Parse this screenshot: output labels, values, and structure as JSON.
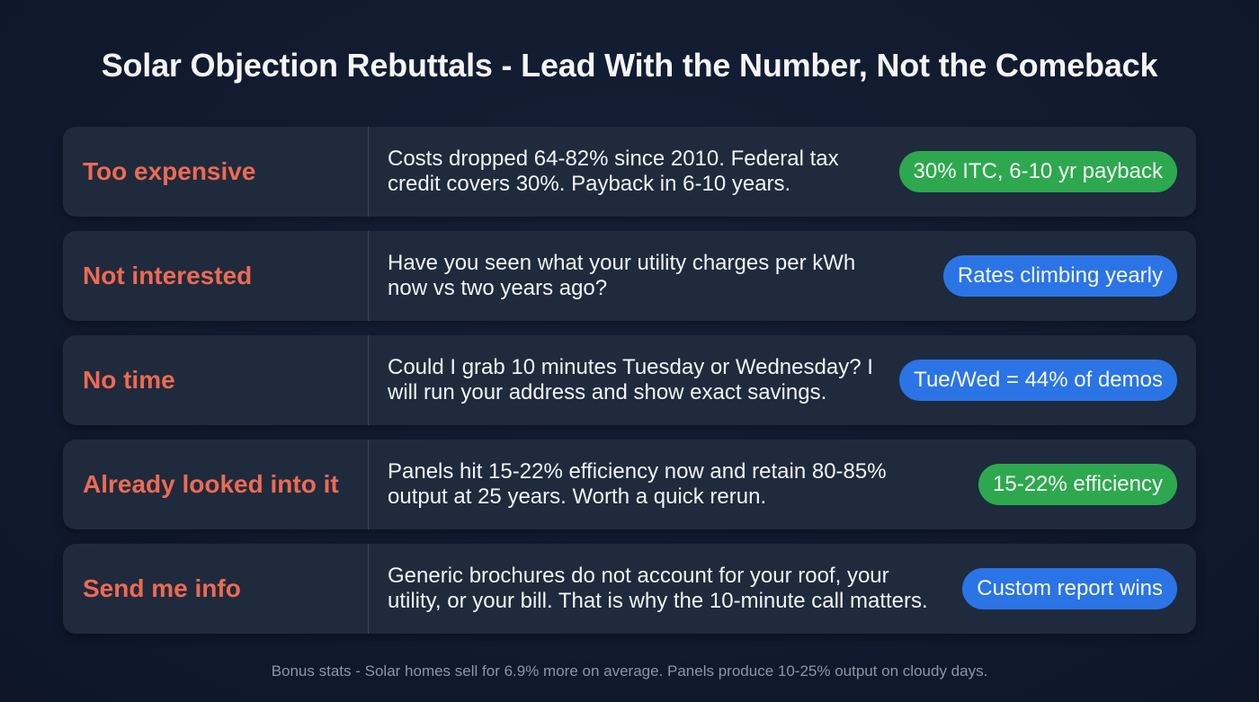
{
  "title": "Solar Objection Rebuttals - Lead With the Number, Not the Comeback",
  "colors": {
    "background": "#111a2e",
    "card": "#1f2a3d",
    "objection_text": "#ee6a52",
    "pill_green": "#2ea84f",
    "pill_blue": "#2b74e6",
    "footer_text": "#8c95a6"
  },
  "rows": [
    {
      "objection": "Too expensive",
      "rebuttal": "Costs dropped 64-82% since 2010. Federal tax\ncredit covers 30%. Payback in 6-10 years.",
      "stat": "30% ITC, 6-10 yr payback",
      "stat_color": "green"
    },
    {
      "objection": "Not interested",
      "rebuttal": "Have you seen what your utility charges per kWh\nnow vs two years ago?",
      "stat": "Rates climbing yearly",
      "stat_color": "blue"
    },
    {
      "objection": "No time",
      "rebuttal": "Could I grab 10 minutes Tuesday or Wednesday? I\n will run your address and show exact savings.",
      "stat": "Tue/Wed = 44% of demos",
      "stat_color": "blue"
    },
    {
      "objection": "Already looked into it",
      "rebuttal": "Panels hit 15-22% efficiency now and retain 80-85%\noutput at 25 years. Worth a quick rerun.",
      "stat": "15-22% efficiency",
      "stat_color": "green"
    },
    {
      "objection": "Send me info",
      "rebuttal": "Generic brochures do not account for your roof, your\nutility, or your bill. That is why the 10-minute call matters.",
      "stat": "Custom report wins",
      "stat_color": "blue"
    }
  ],
  "footer": "Bonus stats - Solar homes sell for 6.9% more on average. Panels produce 10-25% output on cloudy days."
}
